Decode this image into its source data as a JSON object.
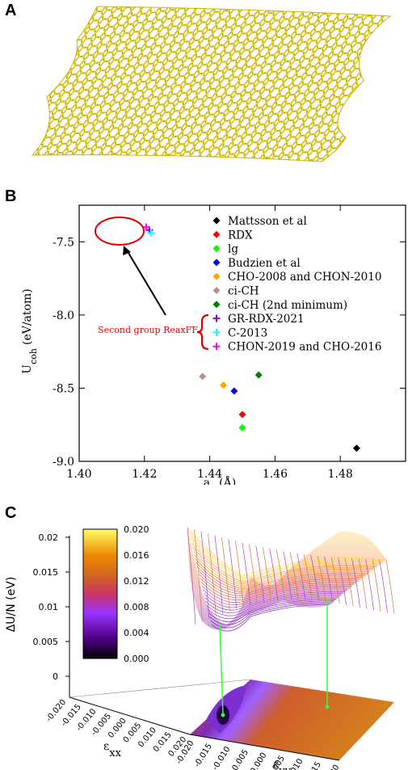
{
  "panels": {
    "a": "A",
    "b": "B",
    "c": "C"
  },
  "chart_data": [
    {
      "type": "scatter",
      "panel": "B",
      "xlabel_main": "a",
      "xlabel_sub": "0",
      "xlabel_unit": "(Å)",
      "ylabel_main": "U",
      "ylabel_sub": "coh",
      "ylabel_unit": "(eV/atom)",
      "xlim": [
        1.4,
        1.5
      ],
      "ylim": [
        -9.0,
        -7.25
      ],
      "xticks": [
        "1.40",
        "1.42",
        "1.44",
        "1.46",
        "1.48"
      ],
      "yticks": [
        "-7.5",
        "-8.0",
        "-8.5",
        "-9.0"
      ],
      "series": [
        {
          "name": "Mattsson et al",
          "color": "#000000",
          "marker": "diamond",
          "x": 1.485,
          "y": -8.91
        },
        {
          "name": "RDX",
          "color": "#ff0000",
          "marker": "diamond",
          "x": 1.45,
          "y": -8.68
        },
        {
          "name": "lg",
          "color": "#00ff00",
          "marker": "diamond",
          "x": 1.45,
          "y": -8.77
        },
        {
          "name": "Budzien et al",
          "color": "#0000ff",
          "marker": "diamond",
          "x": 1.4475,
          "y": -8.52
        },
        {
          "name": "CHO-2008 and CHON-2010",
          "color": "#ffa500",
          "marker": "diamond",
          "x": 1.4442,
          "y": -8.48
        },
        {
          "name": "ci-CH",
          "color": "#bc8f8f",
          "marker": "diamond",
          "x": 1.4378,
          "y": -8.42
        },
        {
          "name": "ci-CH (2nd minimum)",
          "color": "#008000",
          "marker": "diamond",
          "x": 1.455,
          "y": -8.41
        },
        {
          "name": "GR-RDX-2021",
          "color": "#9400d3",
          "marker": "plus",
          "x": 1.4215,
          "y": -7.42
        },
        {
          "name": "C-2013",
          "color": "#00ffff",
          "marker": "plus",
          "x": 1.422,
          "y": -7.44
        },
        {
          "name": "CHON-2019 and CHO-2016",
          "color": "#ff00ff",
          "marker": "plus",
          "x": 1.4205,
          "y": -7.4
        }
      ],
      "annotation": "Second group ReaxFF"
    },
    {
      "type": "heatmap",
      "panel": "C",
      "zlabel": "ΔU/N (eV)",
      "xlabel": "ε",
      "xlabel_sub": "xx",
      "ylabel": "ε",
      "ylabel_sub": "yy",
      "zticks": [
        "0.02",
        "0.015",
        "0.01",
        "0.005",
        "0"
      ],
      "xticks": [
        "-0.020",
        "-0.015",
        "-0.010",
        "-0.005",
        "0.000",
        "0.005",
        "0.010",
        "0.015",
        "0.020"
      ],
      "yticks": [
        "-0.020",
        "-0.015",
        "-0.010",
        "-0.005",
        "0.000",
        "0.005",
        "0.010",
        "0.015",
        "0.020"
      ],
      "colorbar_ticks": [
        "0.020",
        "0.016",
        "0.012",
        "0.008",
        "0.004",
        "0.000"
      ],
      "colorbar_range": [
        0.0,
        0.02
      ]
    }
  ]
}
